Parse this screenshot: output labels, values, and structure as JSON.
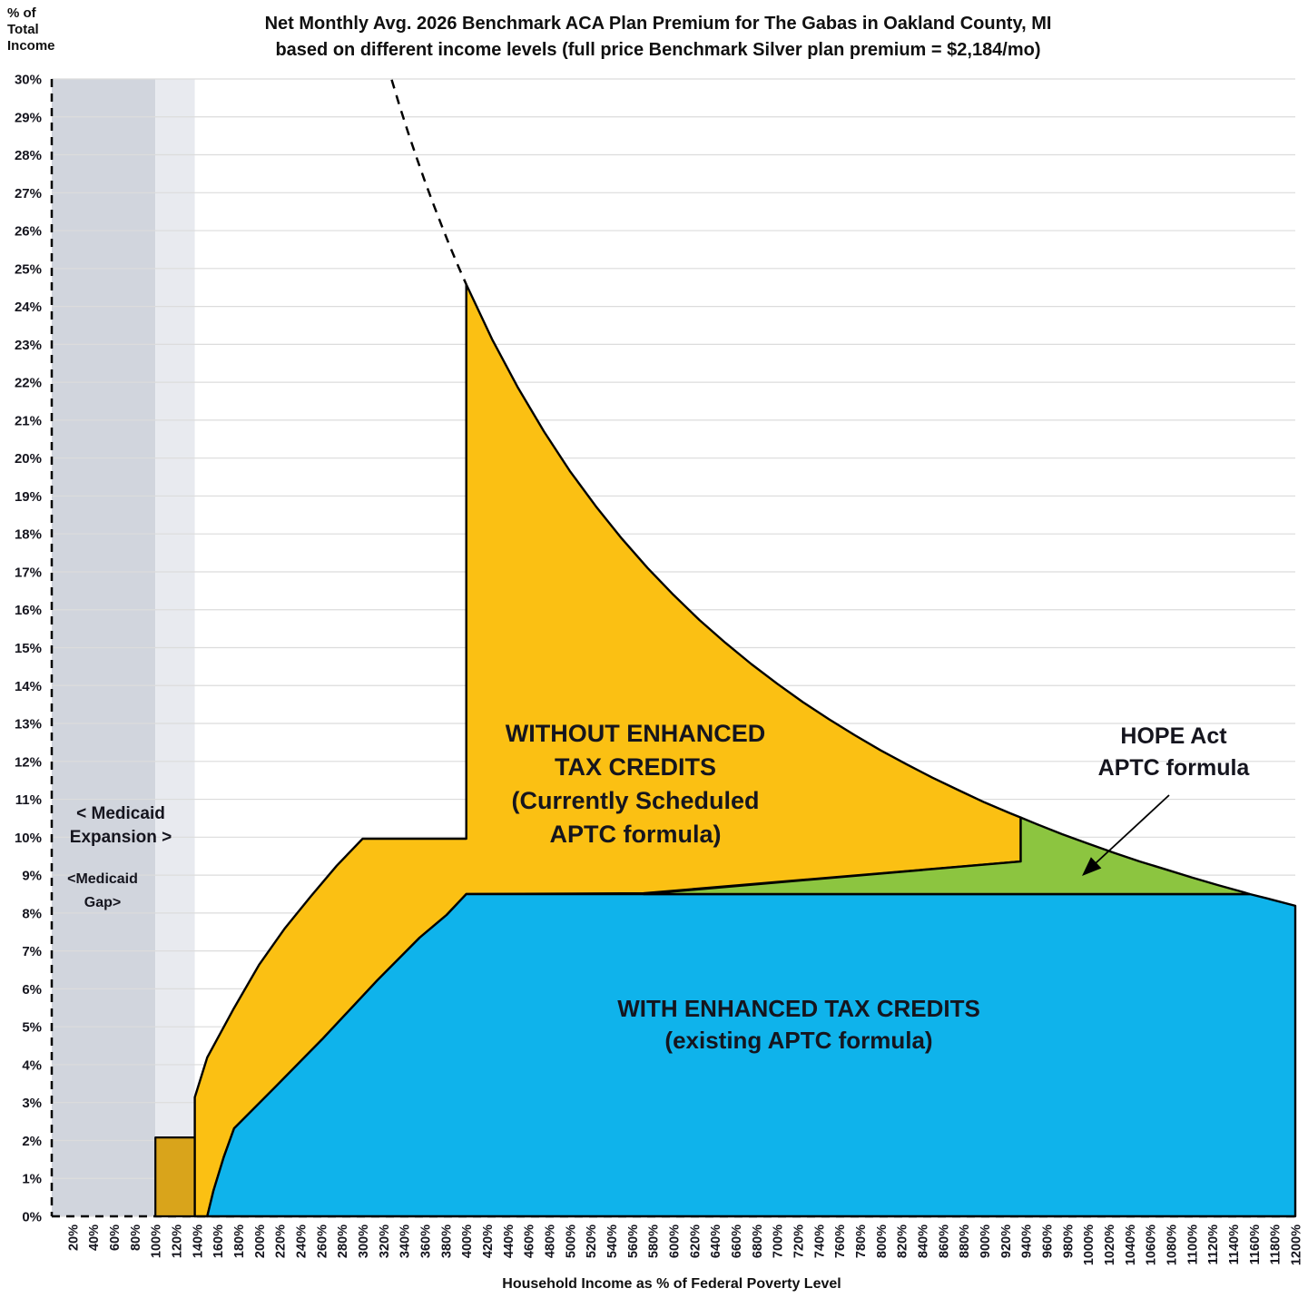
{
  "title": {
    "line1": "Net Monthly Avg. 2026 Benchmark ACA Plan Premium for The Gabas in Oakland County, MI",
    "line2": "based on different income levels (full price Benchmark Silver plan premium = $2,184/mo)"
  },
  "y_axis_corner_label": {
    "line1": "% of",
    "line2": "Total",
    "line3": "Income"
  },
  "x_axis_title": "Household Income as % of Federal Poverty Level",
  "annotations": {
    "medicaid_expansion": {
      "line1": "< Medicaid",
      "line2": "Expansion >"
    },
    "medicaid_gap": {
      "line1": "<Medicaid",
      "line2": "Gap>"
    },
    "without_credits": {
      "line1": "WITHOUT ENHANCED",
      "line2": "TAX CREDITS",
      "line3": "(Currently Scheduled",
      "line4": "APTC formula)"
    },
    "with_credits": {
      "line1": "WITH ENHANCED TAX CREDITS",
      "line2": "(existing APTC formula)"
    },
    "hope_act": {
      "line1": "HOPE Act",
      "line2": "APTC formula"
    }
  },
  "colors": {
    "orange_area": "#FBC013",
    "orange_under_gray": "#D9A41B",
    "blue_area": "#0FB3EB",
    "green_area": "#8CC540",
    "medicaid_expansion_band": "#D1D5DD",
    "medicaid_gap_band": "#E8EAEF",
    "gridline": "#DCDCDC",
    "outline": "#000000",
    "text": "#15151e"
  },
  "chart_data": {
    "type": "area",
    "title": "Net Monthly Avg. 2026 Benchmark ACA Plan Premium for The Gabas in Oakland County, MI based on different income levels (full price Benchmark Silver plan premium = $2,184/mo)",
    "xlabel": "Household Income as % of Federal Poverty Level",
    "ylabel": "% of Total Income",
    "x_axis": {
      "min": 0,
      "max": 1200,
      "tick_start": 20,
      "tick_step": 20,
      "tick_suffix": "%"
    },
    "y_axis": {
      "min": 0,
      "max": 30,
      "tick_step": 1,
      "tick_suffix": "%",
      "grid": true
    },
    "full_price_premium_monthly": "$2,184/mo",
    "series": {
      "full_price_pct_of_income": [
        [
          400,
          24.58
        ],
        [
          425,
          23.13
        ],
        [
          450,
          21.85
        ],
        [
          475,
          20.7
        ],
        [
          500,
          19.66
        ],
        [
          525,
          18.73
        ],
        [
          550,
          17.88
        ],
        [
          575,
          17.1
        ],
        [
          600,
          16.39
        ],
        [
          625,
          15.73
        ],
        [
          650,
          15.13
        ],
        [
          675,
          14.57
        ],
        [
          700,
          14.05
        ],
        [
          725,
          13.56
        ],
        [
          750,
          13.11
        ],
        [
          775,
          12.69
        ],
        [
          800,
          12.29
        ],
        [
          825,
          11.92
        ],
        [
          850,
          11.57
        ],
        [
          875,
          11.24
        ],
        [
          900,
          10.92
        ],
        [
          925,
          10.63
        ],
        [
          935,
          10.52
        ],
        [
          950,
          10.35
        ],
        [
          975,
          10.08
        ],
        [
          1000,
          9.83
        ],
        [
          1025,
          9.59
        ],
        [
          1050,
          9.36
        ],
        [
          1075,
          9.15
        ],
        [
          1100,
          8.94
        ],
        [
          1125,
          8.74
        ],
        [
          1150,
          8.55
        ],
        [
          1156,
          8.5
        ],
        [
          1175,
          8.37
        ],
        [
          1200,
          8.19
        ]
      ],
      "scheduled_aptc_pct": [
        [
          100,
          2.08
        ],
        [
          138,
          2.08
        ],
        [
          138,
          3.14
        ],
        [
          150,
          4.19
        ],
        [
          175,
          5.45
        ],
        [
          200,
          6.63
        ],
        [
          225,
          7.6
        ],
        [
          250,
          8.44
        ],
        [
          275,
          9.25
        ],
        [
          300,
          9.96
        ],
        [
          400,
          9.96
        ]
      ],
      "existing_aptc_pct": [
        [
          150,
          0
        ],
        [
          156,
          0.67
        ],
        [
          166,
          1.56
        ],
        [
          176,
          2.32
        ],
        [
          216,
          3.42
        ],
        [
          261,
          4.67
        ],
        [
          300,
          5.81
        ],
        [
          314,
          6.22
        ],
        [
          355,
          7.35
        ],
        [
          381,
          7.95
        ],
        [
          400,
          8.5
        ],
        [
          1156,
          8.5
        ],
        [
          1175,
          8.37
        ],
        [
          1200,
          8.19
        ]
      ],
      "hope_aptc_pct": [
        [
          400,
          8.5
        ],
        [
          571,
          8.52
        ],
        [
          935,
          9.36
        ]
      ],
      "dashed_full_price_extension": [
        [
          328,
          29.98
        ],
        [
          336,
          29.26
        ],
        [
          344,
          28.58
        ],
        [
          352,
          27.93
        ],
        [
          360,
          27.31
        ],
        [
          368,
          26.72
        ],
        [
          376,
          26.15
        ],
        [
          384,
          25.6
        ],
        [
          392,
          25.08
        ],
        [
          400,
          24.58
        ]
      ],
      "medicaid_expansion_band_fpl": [
        0,
        100
      ],
      "medicaid_gap_band_fpl": [
        100,
        138
      ]
    }
  }
}
